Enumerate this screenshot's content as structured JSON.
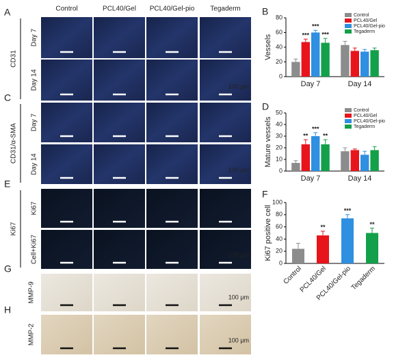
{
  "columns": [
    "Control",
    "PCL40/Gel",
    "PCL40/Gel-pio",
    "Tegaderm"
  ],
  "scale_bar": "100 μm",
  "image_panels": [
    {
      "letter": "A",
      "stain": "CD31",
      "rows": [
        "Day 7",
        "Day 14"
      ]
    },
    {
      "letter": "C",
      "stain": "CD31/α-SMA",
      "rows": [
        "Day 7",
        "Day 14"
      ]
    },
    {
      "letter": "E",
      "stain": "Ki67",
      "rows": [
        "Ki67",
        "Cell+Ki67"
      ]
    },
    {
      "letter": "G",
      "stain": "MMP-9"
    },
    {
      "letter": "H",
      "stain": "MMP-2"
    }
  ],
  "chart_data": [
    {
      "type": "bar",
      "panel_label": "B",
      "ylabel": "Vessels",
      "categories": [
        "Day 7",
        "Day 14"
      ],
      "ylim": [
        0,
        80
      ],
      "yticks": [
        0,
        20,
        40,
        60,
        80
      ],
      "legend": "upper right",
      "series": [
        {
          "name": "Control",
          "color": "#8c8c8c",
          "values": [
            20,
            43
          ],
          "errors": [
            4,
            5
          ]
        },
        {
          "name": "PCL40/Gel",
          "color": "#e8141c",
          "values": [
            47,
            35
          ],
          "errors": [
            4,
            4
          ],
          "significance": [
            "***",
            null
          ]
        },
        {
          "name": "PCL40/Gel-pio",
          "color": "#2f8fe0",
          "values": [
            60,
            34
          ],
          "errors": [
            3,
            3
          ],
          "significance": [
            "***",
            null
          ]
        },
        {
          "name": "Tegaderm",
          "color": "#13a04a",
          "values": [
            46,
            36
          ],
          "errors": [
            6,
            3
          ],
          "significance": [
            "***",
            null
          ]
        }
      ]
    },
    {
      "type": "bar",
      "panel_label": "D",
      "ylabel": "Mature vessels",
      "categories": [
        "Day 7",
        "Day 14"
      ],
      "ylim": [
        0,
        50
      ],
      "yticks": [
        0,
        10,
        20,
        30,
        40,
        50
      ],
      "legend": "upper right",
      "series": [
        {
          "name": "Control",
          "color": "#8c8c8c",
          "values": [
            7,
            17
          ],
          "errors": [
            2,
            3
          ]
        },
        {
          "name": "PCL40/Gel",
          "color": "#e8141c",
          "values": [
            23,
            18
          ],
          "errors": [
            4,
            1
          ],
          "significance": [
            "**",
            null
          ]
        },
        {
          "name": "PCL40/Gel-pio",
          "color": "#2f8fe0",
          "values": [
            30,
            14
          ],
          "errors": [
            3,
            3
          ],
          "significance": [
            "***",
            null
          ]
        },
        {
          "name": "Tegaderm",
          "color": "#13a04a",
          "values": [
            23,
            18
          ],
          "errors": [
            4,
            3
          ],
          "significance": [
            "**",
            null
          ]
        }
      ]
    },
    {
      "type": "bar",
      "panel_label": "F",
      "ylabel": "Ki67 positive cell",
      "categories": [
        "Control",
        "PCL40/Gel",
        "PCL40/Gel-pio",
        "Tegaderm"
      ],
      "ylim": [
        0,
        100
      ],
      "yticks": [
        0,
        20,
        40,
        60,
        80,
        100
      ],
      "series": [
        {
          "colors": [
            "#8c8c8c",
            "#e8141c",
            "#2f8fe0",
            "#13a04a"
          ],
          "values": [
            24,
            46,
            74,
            50
          ],
          "errors": [
            9,
            7,
            6,
            8
          ],
          "significance": [
            null,
            "**",
            "***",
            "**"
          ]
        }
      ]
    }
  ]
}
